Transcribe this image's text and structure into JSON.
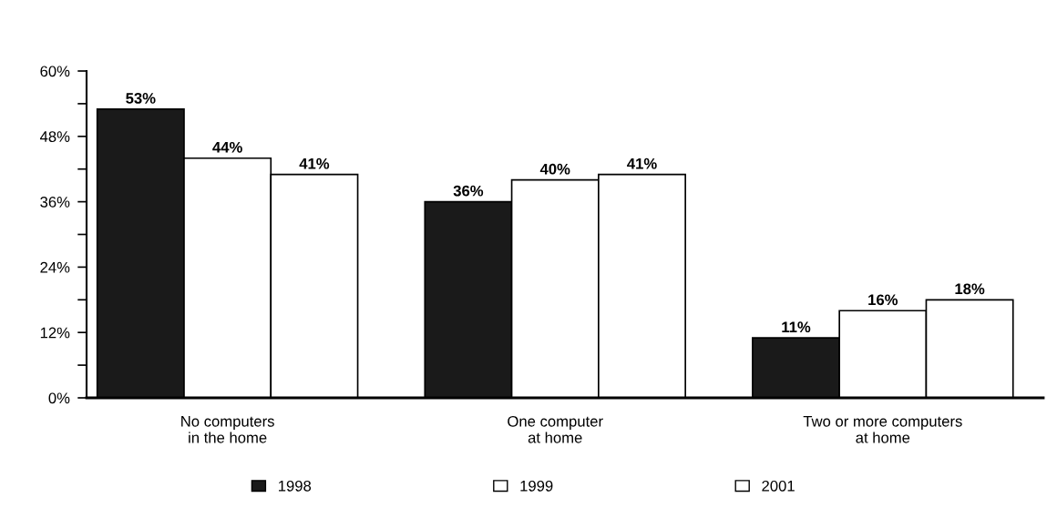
{
  "chart_data": {
    "type": "bar",
    "categories": [
      "No computers\nin the home",
      "One computer\nat home",
      "Two or more computers\nat home"
    ],
    "series": [
      {
        "name": "1998",
        "color": "#1a1a1a",
        "values": [
          53,
          36,
          11
        ],
        "value_labels": [
          "53%",
          "36%",
          "11%"
        ]
      },
      {
        "name": "1999",
        "color": "#ffffff",
        "values": [
          44,
          40,
          16
        ],
        "value_labels": [
          "44%",
          "40%",
          "16%"
        ]
      },
      {
        "name": "2001",
        "color": "#ffffff",
        "values": [
          41,
          41,
          18
        ],
        "value_labels": [
          "41%",
          "41%",
          "18%"
        ]
      }
    ],
    "ylim": [
      0,
      60
    ],
    "yticks": [
      {
        "value": 0,
        "label": "0%"
      },
      {
        "value": 6,
        "label": null
      },
      {
        "value": 12,
        "label": "12%"
      },
      {
        "value": 18,
        "label": null
      },
      {
        "value": 24,
        "label": "24%"
      },
      {
        "value": 30,
        "label": null
      },
      {
        "value": 36,
        "label": "36%"
      },
      {
        "value": 42,
        "label": null
      },
      {
        "value": 48,
        "label": "48%"
      },
      {
        "value": 54,
        "label": null
      },
      {
        "value": 60,
        "label": "60%"
      }
    ],
    "grid": false,
    "legend": "bottom"
  }
}
